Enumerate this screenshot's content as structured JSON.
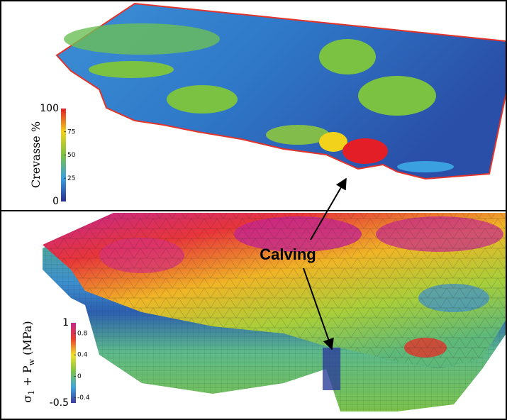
{
  "top_panel": {
    "colorbar": {
      "title": "Crevasse %",
      "end_labels": [
        0,
        100
      ],
      "ticks": [
        25,
        50,
        75
      ]
    }
  },
  "bottom_panel": {
    "colorbar": {
      "title_parts": [
        "σ",
        "1",
        " + P",
        "w",
        " (MPa)"
      ],
      "end_labels": [
        -0.5,
        1
      ],
      "ticks": [
        -0.4,
        0,
        0.4,
        0.8
      ]
    }
  },
  "annotation": "Calving"
}
